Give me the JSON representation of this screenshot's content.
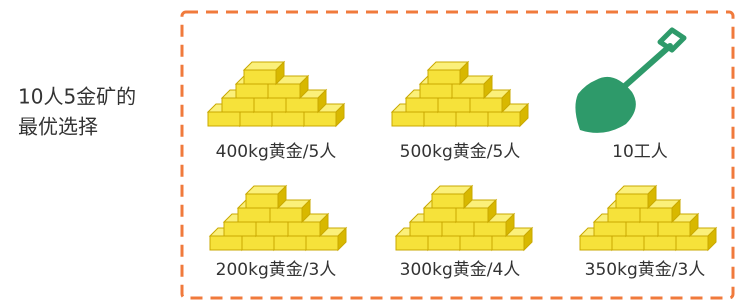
{
  "title": [
    "10人5金矿的",
    "最优选择"
  ],
  "mines": [
    "400kg黄金/5人",
    "500kg黄金/5人",
    "200kg黄金/3人",
    "300kg黄金/4人",
    "350kg黄金/3人"
  ],
  "workers": "10工人"
}
